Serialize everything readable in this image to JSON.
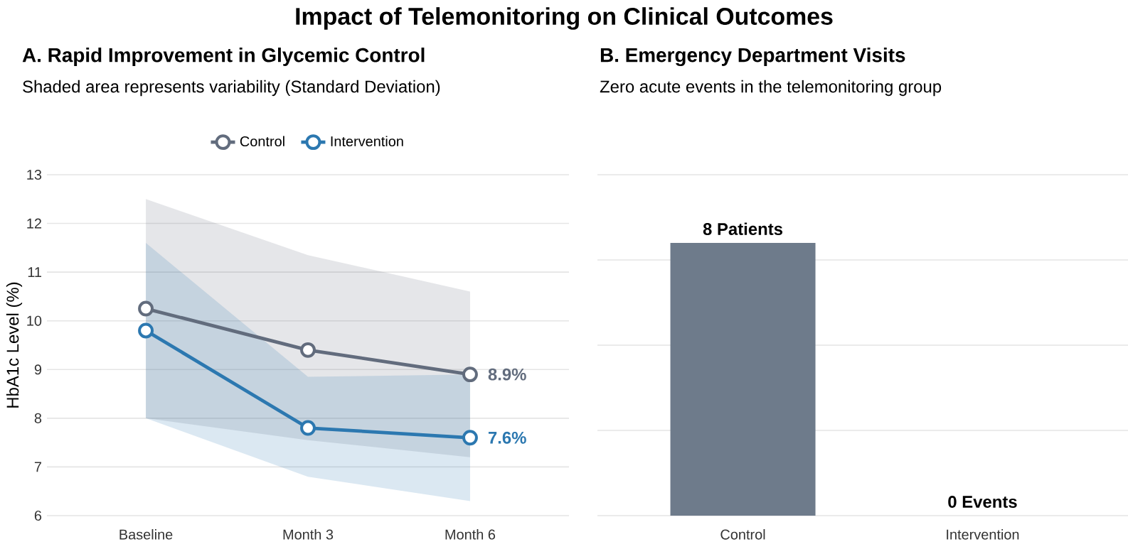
{
  "chart_data": [
    {
      "type": "line",
      "title": "A. Rapid Improvement in Glycemic Control",
      "subtitle": "Shaded area represents variability (Standard Deviation)",
      "annotations": [
        "Impact of Telemonitoring on Clinical Outcomes"
      ],
      "ylabel": "HbA1c Level (%)",
      "categories": [
        "Baseline",
        "Month 3",
        "Month 6"
      ],
      "ylim": [
        6,
        13
      ],
      "yticks": [
        6,
        7,
        8,
        9,
        10,
        11,
        12,
        13
      ],
      "grid": "y",
      "legend": "top",
      "marker": "circle",
      "series": [
        {
          "name": "Control",
          "color": "#626c7d",
          "values": [
            10.25,
            9.4,
            8.9
          ],
          "lower": [
            8.0,
            7.55,
            7.2
          ],
          "upper": [
            12.5,
            11.35,
            10.6
          ],
          "value_labels": [
            null,
            null,
            "8.9%"
          ]
        },
        {
          "name": "Intervention",
          "color": "#2c78b0",
          "values": [
            9.8,
            7.8,
            7.6
          ],
          "lower": [
            8.0,
            6.8,
            6.3
          ],
          "upper": [
            11.6,
            8.85,
            8.9
          ],
          "value_labels": [
            null,
            null,
            "7.6%"
          ]
        }
      ]
    },
    {
      "type": "bar",
      "title": "B. Emergency Department Visits",
      "subtitle": "Zero acute events in the telemonitoring group",
      "categories": [
        "Control",
        "Intervention"
      ],
      "values": [
        8,
        0
      ],
      "value_labels": [
        "8 Patients",
        "0 Events"
      ],
      "color": "#6e7b8b",
      "ylim": [
        0,
        10
      ],
      "yticks": [
        {
          "value": 0,
          "label": null
        },
        {
          "value": 2.5,
          "label": null
        },
        {
          "value": 5,
          "label": null
        },
        {
          "value": 7.5,
          "label": null
        },
        {
          "value": 10,
          "label": null
        }
      ],
      "grid": "y",
      "tick_labels": "x"
    }
  ]
}
